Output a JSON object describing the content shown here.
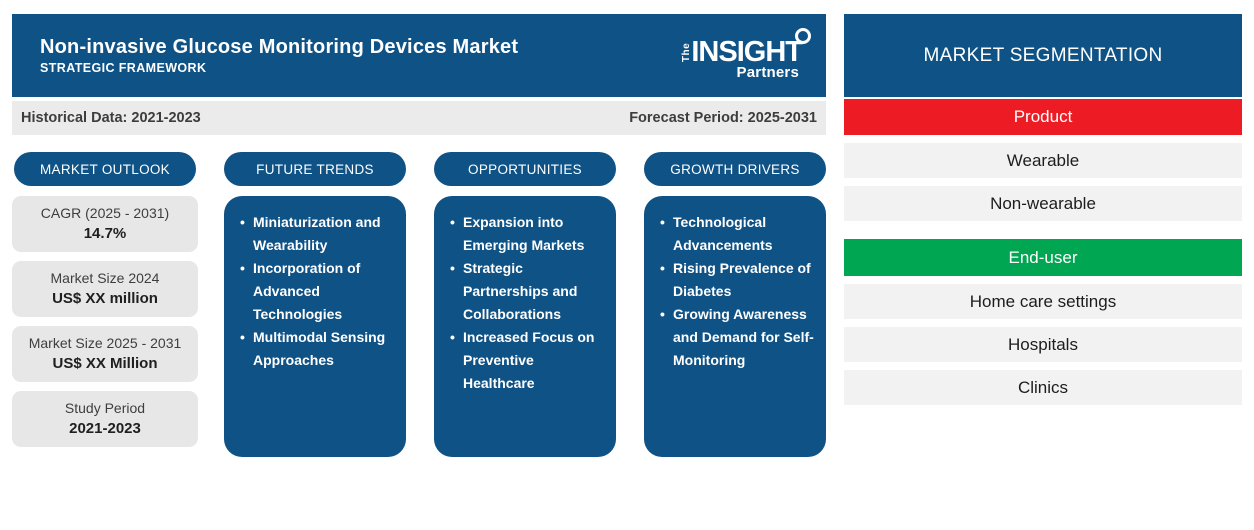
{
  "header": {
    "title": "Non-invasive Glucose Monitoring Devices Market",
    "subtitle": "STRATEGIC FRAMEWORK"
  },
  "logo": {
    "the": "The",
    "name": "INSIGHT",
    "suffix": "Partners"
  },
  "period_bar": {
    "historical": "Historical Data: 2021-2023",
    "forecast": "Forecast Period: 2025-2031"
  },
  "columns": [
    {
      "label": "MARKET OUTLOOK",
      "stats": [
        {
          "label": "CAGR (2025 - 2031)",
          "value": "14.7%"
        },
        {
          "label": "Market Size 2024",
          "value": "US$ XX million"
        },
        {
          "label": "Market Size 2025 - 2031",
          "value": "US$ XX Million"
        },
        {
          "label": "Study Period",
          "value": "2021-2023"
        }
      ]
    },
    {
      "label": "FUTURE TRENDS",
      "bullets": [
        "Miniaturization and Wearability",
        "Incorporation of Advanced Technologies",
        "Multimodal Sensing Approaches"
      ]
    },
    {
      "label": "OPPORTUNITIES",
      "bullets": [
        "Expansion into Emerging Markets",
        "Strategic Partnerships and Collaborations",
        "Increased Focus on Preventive Healthcare"
      ]
    },
    {
      "label": "GROWTH DRIVERS",
      "bullets": [
        "Technological Advancements",
        "Rising Prevalence of Diabetes",
        "Growing Awareness and Demand for Self-Monitoring"
      ]
    }
  ],
  "segmentation": {
    "title": "MARKET SEGMENTATION",
    "groups": [
      {
        "label": "Product",
        "color": "#ED1C24",
        "items": [
          "Wearable",
          "Non-wearable"
        ]
      },
      {
        "label": "End-user",
        "color": "#00A651",
        "items": [
          "Home care settings",
          "Hospitals",
          "Clinics"
        ]
      }
    ]
  },
  "colors": {
    "primary_blue": "#0F5286",
    "accent_red": "#ED1C24",
    "accent_green": "#00A651",
    "strip_gray": "#EBEBEB",
    "box_gray": "#E7E7E7",
    "bar_gray": "#F2F2F2"
  }
}
